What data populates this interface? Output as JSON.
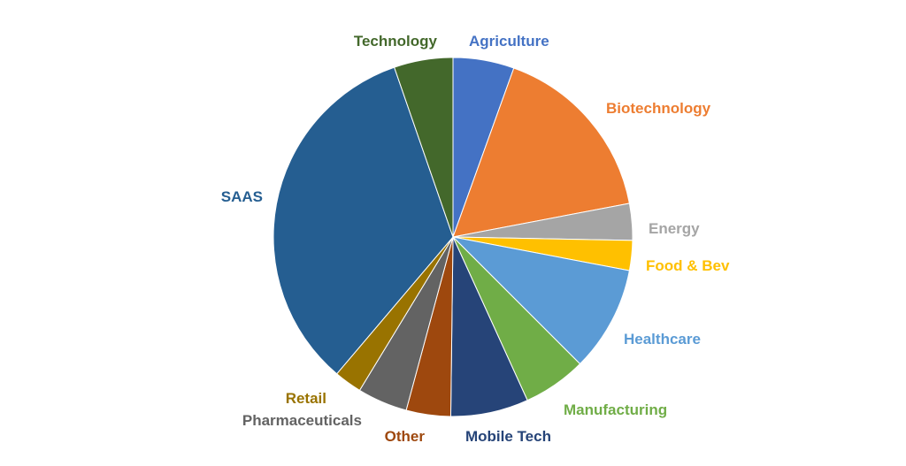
{
  "chart_data": {
    "type": "pie",
    "title": "",
    "categories": [
      "Agriculture",
      "Biotechnology",
      "Energy",
      "Food & Bev",
      "Healthcare",
      "Manufacturing",
      "Mobile Tech",
      "Other",
      "Pharmaceuticals",
      "Retail",
      "SAAS",
      "Technology"
    ],
    "values": [
      5.5,
      16.5,
      3.3,
      2.7,
      9.5,
      5.7,
      7.0,
      4.0,
      4.5,
      2.5,
      33.5,
      5.3
    ],
    "colors": [
      "#4472C4",
      "#ED7D31",
      "#A5A5A5",
      "#FFC000",
      "#5B9BD5",
      "#70AD47",
      "#264478",
      "#9E480E",
      "#636363",
      "#997300",
      "#255E91",
      "#43682B"
    ],
    "start_angle": "top, clockwise",
    "legend": "none (data labels outside slices)"
  }
}
